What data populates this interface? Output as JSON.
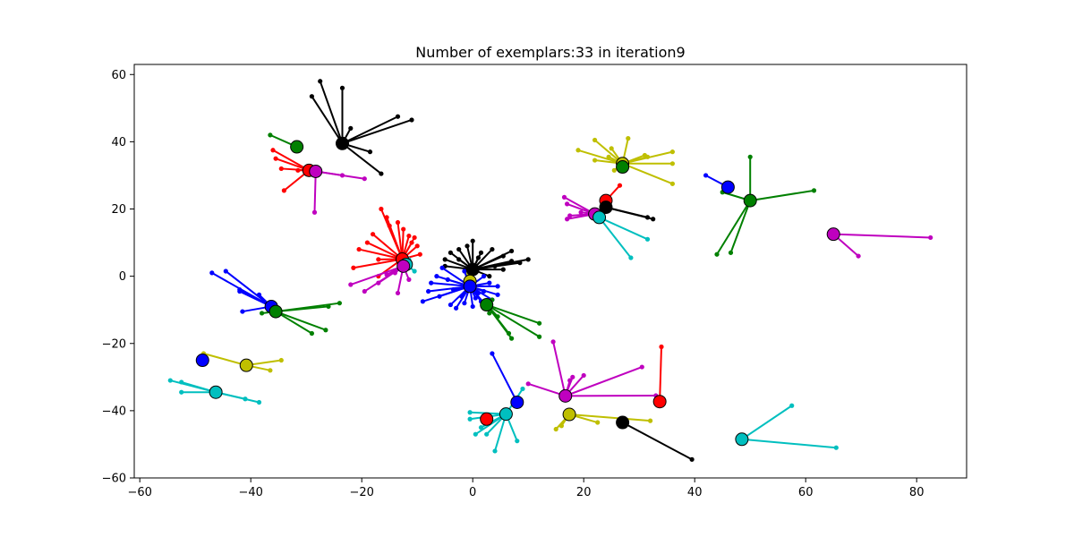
{
  "chart_data": {
    "type": "scatter",
    "title": "Number of exemplars:33 in iteration9",
    "xlabel": "",
    "ylabel": "",
    "xlim": [
      -61,
      89
    ],
    "ylim": [
      -60,
      63
    ],
    "xticks": [
      -60,
      -40,
      -20,
      0,
      20,
      40,
      60,
      80
    ],
    "yticks": [
      -60,
      -40,
      -20,
      0,
      20,
      40,
      60
    ],
    "xtick_labels": [
      "−60",
      "−40",
      "−20",
      "0",
      "20",
      "40",
      "60",
      "80"
    ],
    "ytick_labels": [
      "−60",
      "−40",
      "−20",
      "0",
      "20",
      "40",
      "60"
    ],
    "grid": false,
    "clusters": [
      {
        "color": "#000000",
        "center": [
          -23.5,
          39.5
        ],
        "points": [
          [
            -27.5,
            58.0
          ],
          [
            -29.0,
            53.5
          ],
          [
            -23.5,
            56.0
          ],
          [
            -22.0,
            44.0
          ],
          [
            -13.5,
            47.5
          ],
          [
            -11.0,
            46.5
          ],
          [
            -18.5,
            37.0
          ],
          [
            -16.5,
            30.5
          ]
        ]
      },
      {
        "color": "#008000",
        "center": [
          -31.7,
          38.5
        ],
        "points": [
          [
            -36.5,
            42.0
          ]
        ]
      },
      {
        "color": "#ff0000",
        "center": [
          -29.5,
          31.5
        ],
        "points": [
          [
            -36.0,
            37.5
          ],
          [
            -35.5,
            35.0
          ],
          [
            -34.5,
            32.0
          ],
          [
            -34.0,
            25.5
          ],
          [
            -31.5,
            31.5
          ]
        ]
      },
      {
        "color": "#bf00bf",
        "center": [
          -28.3,
          31.2
        ],
        "points": [
          [
            -23.5,
            30.0
          ],
          [
            -19.5,
            29.0
          ],
          [
            -28.5,
            19.0
          ]
        ]
      },
      {
        "color": "#ff0000",
        "center": [
          -12.7,
          5.1
        ],
        "points": [
          [
            -16.5,
            20.0
          ],
          [
            -15.5,
            17.5
          ],
          [
            -15.0,
            15.0
          ],
          [
            -18.0,
            12.5
          ],
          [
            -19.0,
            10.0
          ],
          [
            -20.5,
            8.0
          ],
          [
            -21.5,
            2.5
          ],
          [
            -17.0,
            5.0
          ],
          [
            -13.5,
            16.0
          ],
          [
            -11.5,
            12.0
          ],
          [
            -10.5,
            11.5
          ],
          [
            -10.0,
            9.0
          ],
          [
            -9.5,
            6.5
          ],
          [
            -11.0,
            10.0
          ],
          [
            -17.0,
            0.0
          ],
          [
            -12.5,
            14.0
          ]
        ]
      },
      {
        "color": "#00bfbf",
        "center": [
          -12.0,
          3.5
        ],
        "points": [
          [
            -10.5,
            1.5
          ],
          [
            -11.5,
            5.0
          ]
        ]
      },
      {
        "color": "#bf00bf",
        "center": [
          -12.5,
          3.0
        ],
        "points": [
          [
            -22.0,
            -2.5
          ],
          [
            -19.5,
            -4.5
          ],
          [
            -17.0,
            -2.0
          ],
          [
            -13.5,
            -5.0
          ],
          [
            -15.5,
            0.5
          ],
          [
            -11.5,
            -1.0
          ],
          [
            -14.0,
            1.0
          ]
        ]
      },
      {
        "color": "#000000",
        "center": [
          0.0,
          2.0
        ],
        "points": [
          [
            -5.0,
            3.0
          ],
          [
            -5.0,
            5.0
          ],
          [
            -4.0,
            7.0
          ],
          [
            -2.5,
            8.0
          ],
          [
            -1.0,
            9.0
          ],
          [
            0.0,
            10.5
          ],
          [
            1.5,
            7.0
          ],
          [
            3.5,
            8.0
          ],
          [
            5.5,
            6.0
          ],
          [
            7.0,
            7.5
          ],
          [
            8.5,
            4.0
          ],
          [
            10.0,
            5.0
          ],
          [
            7.0,
            4.5
          ],
          [
            4.0,
            3.0
          ],
          [
            3.0,
            0.0
          ],
          [
            5.5,
            2.0
          ],
          [
            -2.5,
            5.0
          ],
          [
            1.0,
            5.5
          ]
        ]
      },
      {
        "color": "#bfbf00",
        "center": [
          -0.5,
          -1.5
        ],
        "points": [
          [
            -1.0,
            0.5
          ]
        ]
      },
      {
        "color": "#0000ff",
        "center": [
          -0.5,
          -3.0
        ],
        "points": [
          [
            -5.5,
            2.5
          ],
          [
            -6.5,
            0.0
          ],
          [
            -7.5,
            -2.0
          ],
          [
            -8.0,
            -4.5
          ],
          [
            -9.0,
            -7.5
          ],
          [
            -4.0,
            -8.5
          ],
          [
            -3.0,
            -9.5
          ],
          [
            -1.5,
            -8.0
          ],
          [
            0.0,
            -9.0
          ],
          [
            1.5,
            -7.5
          ],
          [
            2.5,
            -9.0
          ],
          [
            3.5,
            -7.0
          ],
          [
            4.5,
            -5.5
          ],
          [
            4.5,
            -3.0
          ],
          [
            3.0,
            -2.0
          ],
          [
            2.0,
            0.0
          ],
          [
            -2.0,
            -6.0
          ],
          [
            -3.5,
            -4.0
          ],
          [
            -4.5,
            -1.0
          ],
          [
            -6.0,
            -6.0
          ],
          [
            1.0,
            -5.0
          ],
          [
            -1.5,
            1.5
          ],
          [
            0.5,
            -6.5
          ],
          [
            2.0,
            -4.5
          ],
          [
            -1.0,
            -4.0
          ]
        ]
      },
      {
        "color": "#008000",
        "center": [
          2.5,
          -8.5
        ],
        "points": [
          [
            6.5,
            -17.0
          ],
          [
            7.0,
            -18.5
          ],
          [
            12.0,
            -14.0
          ],
          [
            12.0,
            -18.0
          ],
          [
            4.5,
            -12.0
          ],
          [
            3.0,
            -11.0
          ],
          [
            3.5,
            -7.0
          ]
        ]
      },
      {
        "color": "#0000ff",
        "center": [
          -36.3,
          -9.0
        ],
        "points": [
          [
            -47.0,
            1.0
          ],
          [
            -44.5,
            1.5
          ],
          [
            -42.0,
            -4.0
          ],
          [
            -42.0,
            -4.5
          ],
          [
            -38.5,
            -5.5
          ],
          [
            -41.5,
            -10.5
          ]
        ]
      },
      {
        "color": "#008000",
        "center": [
          -35.5,
          -10.5
        ],
        "points": [
          [
            -24.0,
            -8.0
          ],
          [
            -26.0,
            -9.0
          ],
          [
            -29.0,
            -17.0
          ],
          [
            -26.5,
            -16.0
          ],
          [
            -38.0,
            -11.0
          ]
        ]
      },
      {
        "color": "#bfbf00",
        "center": [
          27.0,
          33.5
        ],
        "points": [
          [
            19.0,
            37.5
          ],
          [
            22.0,
            40.5
          ],
          [
            25.0,
            38.0
          ],
          [
            28.0,
            41.0
          ],
          [
            31.0,
            36.0
          ],
          [
            36.0,
            37.0
          ],
          [
            36.0,
            33.5
          ],
          [
            36.0,
            27.5
          ],
          [
            25.5,
            31.5
          ],
          [
            24.5,
            35.5
          ],
          [
            31.5,
            35.5
          ],
          [
            22.0,
            34.5
          ]
        ]
      },
      {
        "color": "#008000",
        "center": [
          27.0,
          32.5
        ],
        "points": [
          [
            27.5,
            34.0
          ]
        ]
      },
      {
        "color": "#ff0000",
        "center": [
          24.0,
          22.5
        ],
        "points": [
          [
            26.5,
            27.0
          ]
        ]
      },
      {
        "color": "#000000",
        "center": [
          24.0,
          20.5
        ],
        "points": [
          [
            31.5,
            17.5
          ],
          [
            32.5,
            17.0
          ]
        ]
      },
      {
        "color": "#bf00bf",
        "center": [
          22.0,
          18.5
        ],
        "points": [
          [
            16.5,
            23.5
          ],
          [
            17.0,
            21.5
          ],
          [
            17.5,
            18.0
          ],
          [
            17.0,
            17.0
          ],
          [
            19.5,
            19.0
          ]
        ]
      },
      {
        "color": "#00bfbf",
        "center": [
          22.8,
          17.5
        ],
        "points": [
          [
            31.5,
            11.0
          ],
          [
            28.5,
            5.5
          ]
        ]
      },
      {
        "color": "#0000ff",
        "center": [
          46.0,
          26.5
        ],
        "points": [
          [
            42.0,
            30.0
          ]
        ]
      },
      {
        "color": "#008000",
        "center": [
          50.0,
          22.5
        ],
        "points": [
          [
            50.0,
            35.5
          ],
          [
            61.5,
            25.5
          ],
          [
            44.0,
            6.5
          ],
          [
            46.5,
            7.0
          ],
          [
            45.0,
            25.0
          ]
        ]
      },
      {
        "color": "#bf00bf",
        "center": [
          65.0,
          12.5
        ],
        "points": [
          [
            82.5,
            11.5
          ],
          [
            69.5,
            6.0
          ]
        ]
      },
      {
        "color": "#0000ff",
        "center": [
          -48.7,
          -25.0
        ],
        "points": []
      },
      {
        "color": "#bfbf00",
        "center": [
          -40.8,
          -26.5
        ],
        "points": [
          [
            -48.5,
            -23.0
          ],
          [
            -34.5,
            -25.0
          ],
          [
            -36.5,
            -28.0
          ]
        ]
      },
      {
        "color": "#00bfbf",
        "center": [
          -46.3,
          -34.5
        ],
        "points": [
          [
            -54.5,
            -31.0
          ],
          [
            -52.5,
            -31.5
          ],
          [
            -52.5,
            -34.5
          ],
          [
            -41.0,
            -36.5
          ],
          [
            -38.5,
            -37.5
          ]
        ]
      },
      {
        "color": "#0000ff",
        "center": [
          8.0,
          -37.5
        ],
        "points": [
          [
            3.5,
            -23.0
          ]
        ]
      },
      {
        "color": "#00bfbf",
        "center": [
          6.0,
          -41.0
        ],
        "points": [
          [
            9.0,
            -33.5
          ],
          [
            -0.5,
            -40.5
          ],
          [
            -0.5,
            -42.5
          ],
          [
            0.5,
            -47.0
          ],
          [
            1.5,
            -45.0
          ],
          [
            4.0,
            -52.0
          ],
          [
            8.0,
            -49.0
          ],
          [
            2.5,
            -47.0
          ]
        ]
      },
      {
        "color": "#ff0000",
        "center": [
          2.5,
          -42.5
        ],
        "points": []
      },
      {
        "color": "#bf00bf",
        "center": [
          16.7,
          -35.6
        ],
        "points": [
          [
            14.5,
            -19.5
          ],
          [
            17.5,
            -31.0
          ],
          [
            18.0,
            -30.0
          ],
          [
            20.0,
            -29.5
          ],
          [
            30.5,
            -27.0
          ],
          [
            10.0,
            -32.0
          ],
          [
            33.0,
            -35.5
          ]
        ]
      },
      {
        "color": "#ff0000",
        "center": [
          33.7,
          -37.3
        ],
        "points": [
          [
            34.0,
            -21.0
          ]
        ]
      },
      {
        "color": "#bfbf00",
        "center": [
          17.4,
          -41.1
        ],
        "points": [
          [
            15.0,
            -45.5
          ],
          [
            16.0,
            -44.5
          ],
          [
            22.5,
            -43.5
          ],
          [
            32.0,
            -43.0
          ]
        ]
      },
      {
        "color": "#000000",
        "center": [
          27.0,
          -43.5
        ],
        "points": [
          [
            39.5,
            -54.5
          ]
        ]
      },
      {
        "color": "#00bfbf",
        "center": [
          48.5,
          -48.5
        ],
        "points": [
          [
            57.5,
            -38.5
          ],
          [
            65.5,
            -51.0
          ]
        ]
      }
    ]
  }
}
